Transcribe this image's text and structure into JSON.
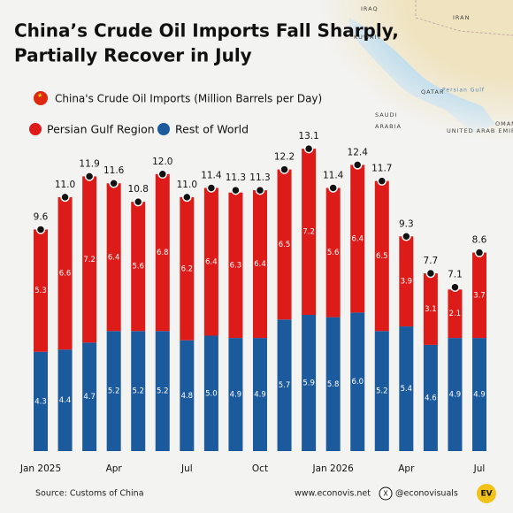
{
  "chart_data": {
    "type": "stacked_bar",
    "title": [
      "China’s Crude Oil Imports Fall Sharply,",
      "Partially Recover in July"
    ],
    "subtitle": "China's Crude Oil Imports (Million Barrels per Day)",
    "categories": [
      "Jan 2025",
      null,
      null,
      "Apr",
      null,
      null,
      "Jul",
      null,
      null,
      "Oct",
      null,
      null,
      "Jan 2026",
      null,
      null,
      "Apr",
      null,
      null,
      "Jul"
    ],
    "series": [
      {
        "name": "Rest of World",
        "color": "#1c5a9e",
        "values": [
          4.3,
          4.4,
          4.7,
          5.2,
          5.2,
          5.2,
          4.8,
          5.0,
          4.9,
          4.9,
          5.7,
          5.9,
          5.8,
          6.0,
          5.2,
          5.4,
          4.6,
          4.9,
          4.9
        ],
        "value_labels": [
          "4.3",
          "4.4",
          "4.7",
          "5.2",
          "5.2",
          "5.2",
          "4.8",
          "5.0",
          "4.9",
          "4.9",
          "5.7",
          "5.9",
          "5.8",
          "6.0",
          "5.2",
          "5.4",
          "4.6",
          "4.9",
          "4.9"
        ]
      },
      {
        "name": "Persian Gulf Region",
        "color": "#dd1c1a",
        "values": [
          5.3,
          6.6,
          7.2,
          6.4,
          5.6,
          6.8,
          6.2,
          6.4,
          6.3,
          6.4,
          6.5,
          7.2,
          5.6,
          6.4,
          6.5,
          3.9,
          3.1,
          2.1,
          3.7
        ]
      }
    ],
    "totals": [
      9.6,
      11.0,
      11.9,
      11.6,
      10.8,
      12.0,
      11.0,
      11.4,
      11.3,
      11.3,
      12.2,
      13.1,
      11.4,
      12.4,
      11.7,
      9.3,
      7.7,
      7.1,
      8.6
    ],
    "total_labels": [
      "9.6",
      "11.0",
      "11.9",
      "11.6",
      "10.8",
      "12.0",
      "11.0",
      "11.4",
      "11.3",
      "11.3",
      "12.2",
      "13.1",
      "11.4",
      "12.4",
      "11.7",
      "9.3",
      "7.7",
      "7.1",
      "8.6"
    ],
    "source": "Source: Customs of China",
    "website": "www.econovis.net",
    "handle": "@econovisuals",
    "logo": "EV",
    "map_labels": [
      "IRAQ",
      "IRAN",
      "KUWAIT",
      "QATAR",
      "Persian Gulf",
      "SAUDI",
      "ARABIA",
      "UNITED ARAB EMIRATES",
      "OMAN"
    ]
  }
}
